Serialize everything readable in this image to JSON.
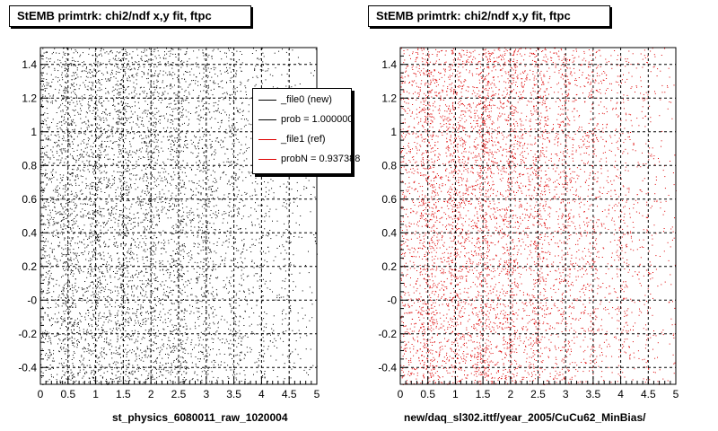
{
  "chart_data": [
    {
      "type": "scatter",
      "title": "StEMB primtrk: chi2/ndf x,y fit, ftpc",
      "xlabel": "st_physics_6080011_raw_1020004",
      "ylabel": "",
      "xlim": [
        0,
        5
      ],
      "ylim": [
        -0.5,
        1.5
      ],
      "xticks": [
        "0",
        "0.5",
        "1",
        "1.5",
        "2",
        "2.5",
        "3",
        "3.5",
        "4",
        "4.5",
        "5"
      ],
      "yticks": [
        "-0.4",
        "-0.2",
        "-0",
        "0.2",
        "0.4",
        "0.6",
        "0.8",
        "1",
        "1.2",
        "1.4"
      ],
      "grid": true,
      "point_color": "#000000",
      "point_count": 6500,
      "density_note": "uniform in y; highest density near x 0.5-1.5, decreasing toward x=5",
      "legend": {
        "placement": "top-right",
        "entries": [
          {
            "label": "_file0 (new)",
            "color": "#000000"
          },
          {
            "label": "prob = 1.000000",
            "color": "#000000"
          },
          {
            "label": "_file1 (ref)",
            "color": "#dd0000"
          },
          {
            "label": "probN = 0.937388",
            "color": "#dd0000"
          }
        ]
      }
    },
    {
      "type": "scatter",
      "title": "StEMB primtrk: chi2/ndf x,y fit, ftpc",
      "xlabel": "new/daq_sl302.ittf/year_2005/CuCu62_MinBias/",
      "ylabel": "",
      "xlim": [
        0,
        5
      ],
      "ylim": [
        -0.5,
        1.5
      ],
      "xticks": [
        "0",
        "0.5",
        "1",
        "1.5",
        "2",
        "2.5",
        "3",
        "3.5",
        "4",
        "4.5",
        "5"
      ],
      "yticks": [
        "-0.4",
        "-0.2",
        "-0",
        "0.2",
        "0.4",
        "0.6",
        "0.8",
        "1",
        "1.2",
        "1.4"
      ],
      "grid": true,
      "point_color": "#dd0000",
      "point_count": 6500,
      "density_note": "uniform in y; highest density near x 0.5-1.5, decreasing toward x=5"
    }
  ]
}
